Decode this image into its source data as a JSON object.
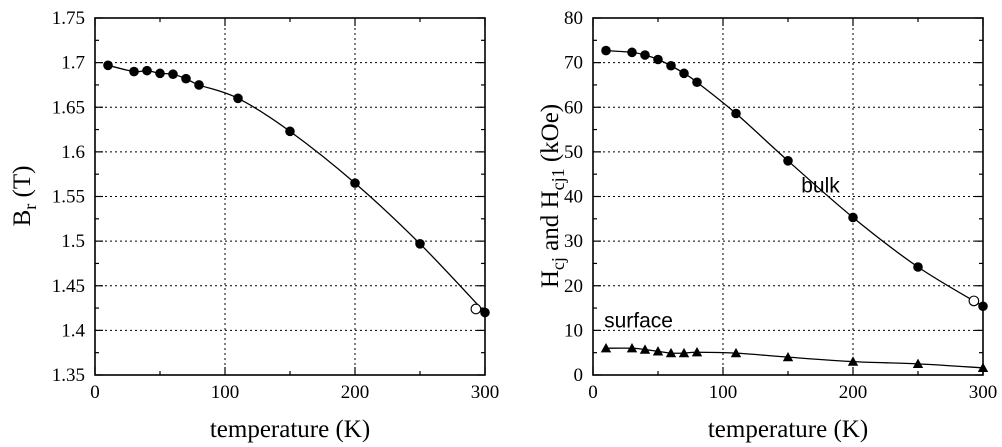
{
  "chart_data": [
    {
      "type": "line",
      "xlabel": "temperature (K)",
      "ylabel_main": "B",
      "ylabel_sub": "r",
      "ylabel_rest": " (T)",
      "xlim": [
        0,
        300
      ],
      "ylim": [
        1.35,
        1.75
      ],
      "xticks": [
        "0",
        "100",
        "200",
        "300"
      ],
      "yticks": [
        "1.35",
        "1.4",
        "1.45",
        "1.5",
        "1.55",
        "1.6",
        "1.65",
        "1.7",
        "1.75"
      ],
      "grid": true,
      "series": [
        {
          "marker": "filled-circle",
          "x": [
            10,
            30,
            40,
            50,
            60,
            70,
            80,
            110,
            150,
            200,
            250,
            300
          ],
          "y": [
            1.697,
            1.69,
            1.691,
            1.688,
            1.687,
            1.682,
            1.675,
            1.66,
            1.623,
            1.565,
            1.497,
            1.42
          ]
        },
        {
          "marker": "open-circle",
          "x": [
            293
          ],
          "y": [
            1.424
          ]
        }
      ],
      "annotations": []
    },
    {
      "type": "line",
      "xlabel": "temperature (K)",
      "ylabel_parts": [
        {
          "t": "H",
          "sub": false
        },
        {
          "t": "cj",
          "sub": true
        },
        {
          "t": " and H",
          "sub": false
        },
        {
          "t": "cj1",
          "sub": true
        },
        {
          "t": " (kOe)",
          "sub": false
        }
      ],
      "xlim": [
        0,
        300
      ],
      "ylim": [
        0,
        80
      ],
      "xticks": [
        "0",
        "100",
        "200",
        "300"
      ],
      "yticks": [
        "0",
        "10",
        "20",
        "30",
        "40",
        "50",
        "60",
        "70",
        "80"
      ],
      "grid": true,
      "series": [
        {
          "marker": "filled-circle",
          "x": [
            10,
            30,
            40,
            50,
            60,
            70,
            80,
            110,
            150,
            200,
            250,
            300
          ],
          "y": [
            72.7,
            72.3,
            71.7,
            70.7,
            69.3,
            67.6,
            65.6,
            58.6,
            48.0,
            35.3,
            24.2,
            15.4
          ]
        },
        {
          "marker": "open-circle",
          "x": [
            293
          ],
          "y": [
            16.6
          ]
        },
        {
          "marker": "filled-triangle",
          "x": [
            10,
            30,
            40,
            50,
            60,
            70,
            80,
            110,
            150,
            200,
            250,
            300
          ],
          "y": [
            6.0,
            6.0,
            5.7,
            5.3,
            4.9,
            4.9,
            5.1,
            4.9,
            4.0,
            3.0,
            2.5,
            1.6
          ]
        }
      ],
      "annotations": [
        {
          "text": "bulk",
          "x": 175,
          "y": 42.5
        },
        {
          "text": "surface",
          "x": 35,
          "y": 12.2
        }
      ]
    }
  ]
}
